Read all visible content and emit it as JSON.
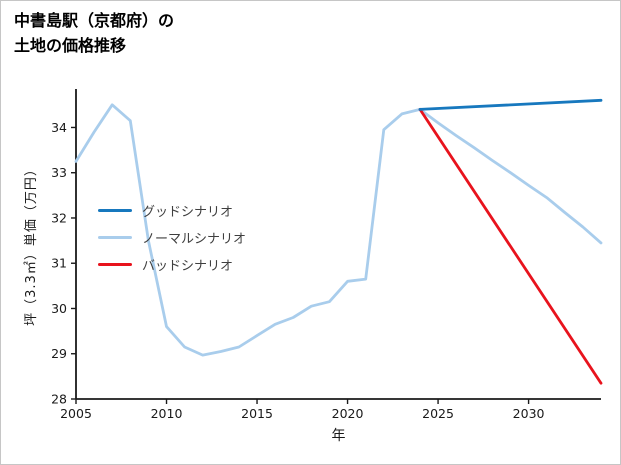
{
  "title": {
    "line1": "中書島駅（京都府）の",
    "line2": "土地の価格推移"
  },
  "chart_data": {
    "type": "line",
    "title": "中書島駅（京都府）の土地の価格推移",
    "xlabel": "年",
    "ylabel": "坪（3.3㎡）単価（万円）",
    "xlim": [
      2005,
      2034
    ],
    "ylim": [
      28,
      34.85
    ],
    "xticks": [
      2005,
      2010,
      2015,
      2020,
      2025,
      2030
    ],
    "yticks": [
      28,
      29,
      30,
      31,
      32,
      33,
      34
    ],
    "grid": false,
    "legend_position": "center-left",
    "axis_color": "#1a1a1a",
    "draw_order": [
      1,
      2,
      0
    ],
    "series": [
      {
        "id": "good",
        "name": "グッドシナリオ",
        "color": "#1778be",
        "x": [
          2024,
          2034
        ],
        "y": [
          34.4,
          34.6
        ]
      },
      {
        "id": "normal",
        "name": "ノーマルシナリオ",
        "color": "#a9cdec",
        "x": [
          2005,
          2006,
          2007,
          2008,
          2009,
          2010,
          2011,
          2012,
          2013,
          2014,
          2015,
          2016,
          2017,
          2018,
          2019,
          2020,
          2021,
          2022,
          2023,
          2024,
          2025,
          2026,
          2027,
          2028,
          2029,
          2030,
          2031,
          2032,
          2033,
          2034
        ],
        "y": [
          33.25,
          33.9,
          34.5,
          34.15,
          31.5,
          29.6,
          29.15,
          28.97,
          29.05,
          29.15,
          29.4,
          29.65,
          29.8,
          30.05,
          30.15,
          30.6,
          30.65,
          33.95,
          34.3,
          34.4,
          34.1,
          33.82,
          33.55,
          33.27,
          33.0,
          32.72,
          32.45,
          32.12,
          31.8,
          31.45
        ]
      },
      {
        "id": "bad",
        "name": "バッドシナリオ",
        "color": "#e8131d",
        "x": [
          2024,
          2034
        ],
        "y": [
          34.4,
          28.35
        ]
      }
    ]
  }
}
